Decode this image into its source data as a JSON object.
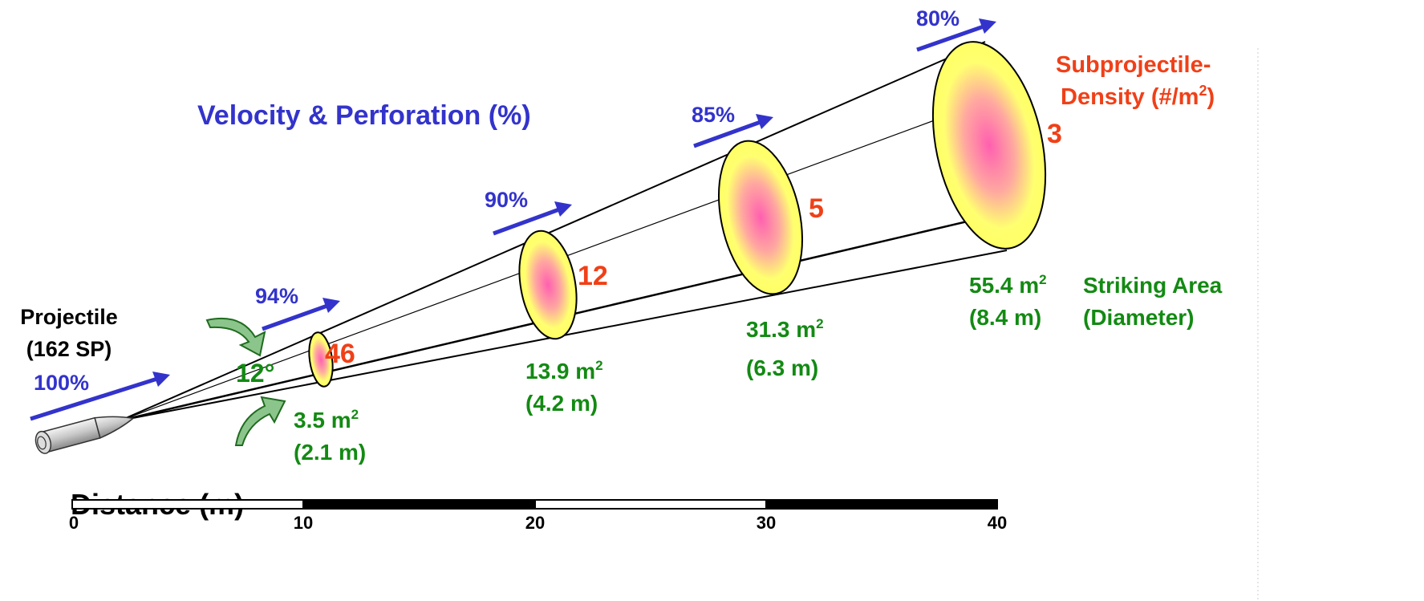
{
  "title": "Velocity & Perforation (%)",
  "projectile": {
    "line1": "Projectile",
    "line2": "(162 SP)"
  },
  "angle_label": "12°",
  "density_title": {
    "line1": "Subprojectile-",
    "line2": "Density (#/m",
    "sup": "2",
    "end": ")"
  },
  "striking_title": {
    "line1": "Striking Area",
    "line2": "(Diameter)"
  },
  "distance_title": "Distance (m)",
  "colors": {
    "velocity": "#3333cc",
    "area": "#138a13",
    "density": "#f04018",
    "spot_fill": "#ffff66",
    "spot_core": "#ff66b3"
  },
  "velocity_labels": [
    "100%",
    "94%",
    "90%",
    "85%",
    "80%"
  ],
  "spots": [
    {
      "distance": 10,
      "density": "46",
      "area": "3.5 m",
      "diameter": "(2.1 m)"
    },
    {
      "distance": 20,
      "density": "12",
      "area": "13.9 m",
      "diameter": "(4.2 m)"
    },
    {
      "distance": 30,
      "density": "5",
      "area": "31.3 m",
      "diameter": "(6.3 m)"
    },
    {
      "distance": 40,
      "density": "3",
      "area": "55.4 m",
      "diameter": "(8.4 m)"
    }
  ],
  "area_sup": "2",
  "scale": {
    "ticks": [
      "0",
      "10",
      "20",
      "30",
      "40"
    ]
  }
}
